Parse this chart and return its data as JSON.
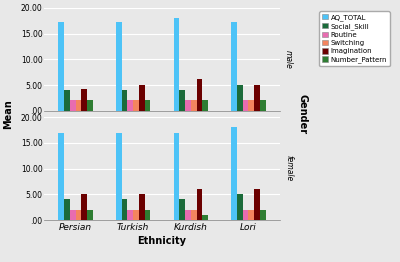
{
  "ethnicities": [
    "Persian",
    "Turkish",
    "Kurdish",
    "Lori"
  ],
  "series": [
    "AQ_TOTAL",
    "Social_Skill",
    "Routine",
    "Switching",
    "Imagination",
    "Number_Pattern"
  ],
  "colors": [
    "#4DC3F7",
    "#1B6B3A",
    "#E86CB0",
    "#F4845F",
    "#6B0000",
    "#2E7D32"
  ],
  "male_data": {
    "Persian": [
      17.2,
      4.0,
      2.1,
      2.1,
      4.2,
      2.1
    ],
    "Turkish": [
      17.2,
      4.0,
      2.1,
      2.1,
      5.1,
      2.1
    ],
    "Kurdish": [
      18.1,
      4.0,
      2.1,
      2.1,
      6.1,
      2.1
    ],
    "Lori": [
      17.2,
      5.0,
      2.1,
      2.1,
      5.1,
      2.1
    ]
  },
  "female_data": {
    "Persian": [
      17.0,
      4.0,
      1.9,
      1.9,
      5.1,
      2.0
    ],
    "Turkish": [
      17.0,
      4.0,
      1.9,
      1.9,
      5.1,
      2.0
    ],
    "Kurdish": [
      17.0,
      4.0,
      1.9,
      1.9,
      6.1,
      1.0
    ],
    "Lori": [
      18.1,
      5.0,
      2.0,
      2.0,
      6.1,
      2.0
    ]
  },
  "ylim": [
    0,
    20
  ],
  "yticks": [
    0.0,
    5.0,
    10.0,
    15.0,
    20.0
  ],
  "ytick_labels": [
    ".00",
    "5.00",
    "10.00",
    "15.00",
    "20.00"
  ],
  "xlabel": "Ethnicity",
  "ylabel": "Mean",
  "gender_labels": [
    "male",
    "female"
  ],
  "gender_axis_label": "Gender",
  "legend_labels": [
    "AQ_TOTAL",
    "Social_Skill",
    "Routine",
    "Switching",
    "Imagination",
    "Number_Pattern"
  ],
  "background_color": "#e8e8e8",
  "plot_bg_color": "#e8e8e8",
  "bar_width": 0.1,
  "title_fontsize": 7,
  "label_fontsize": 7,
  "tick_fontsize": 5.5,
  "legend_fontsize": 5.0
}
